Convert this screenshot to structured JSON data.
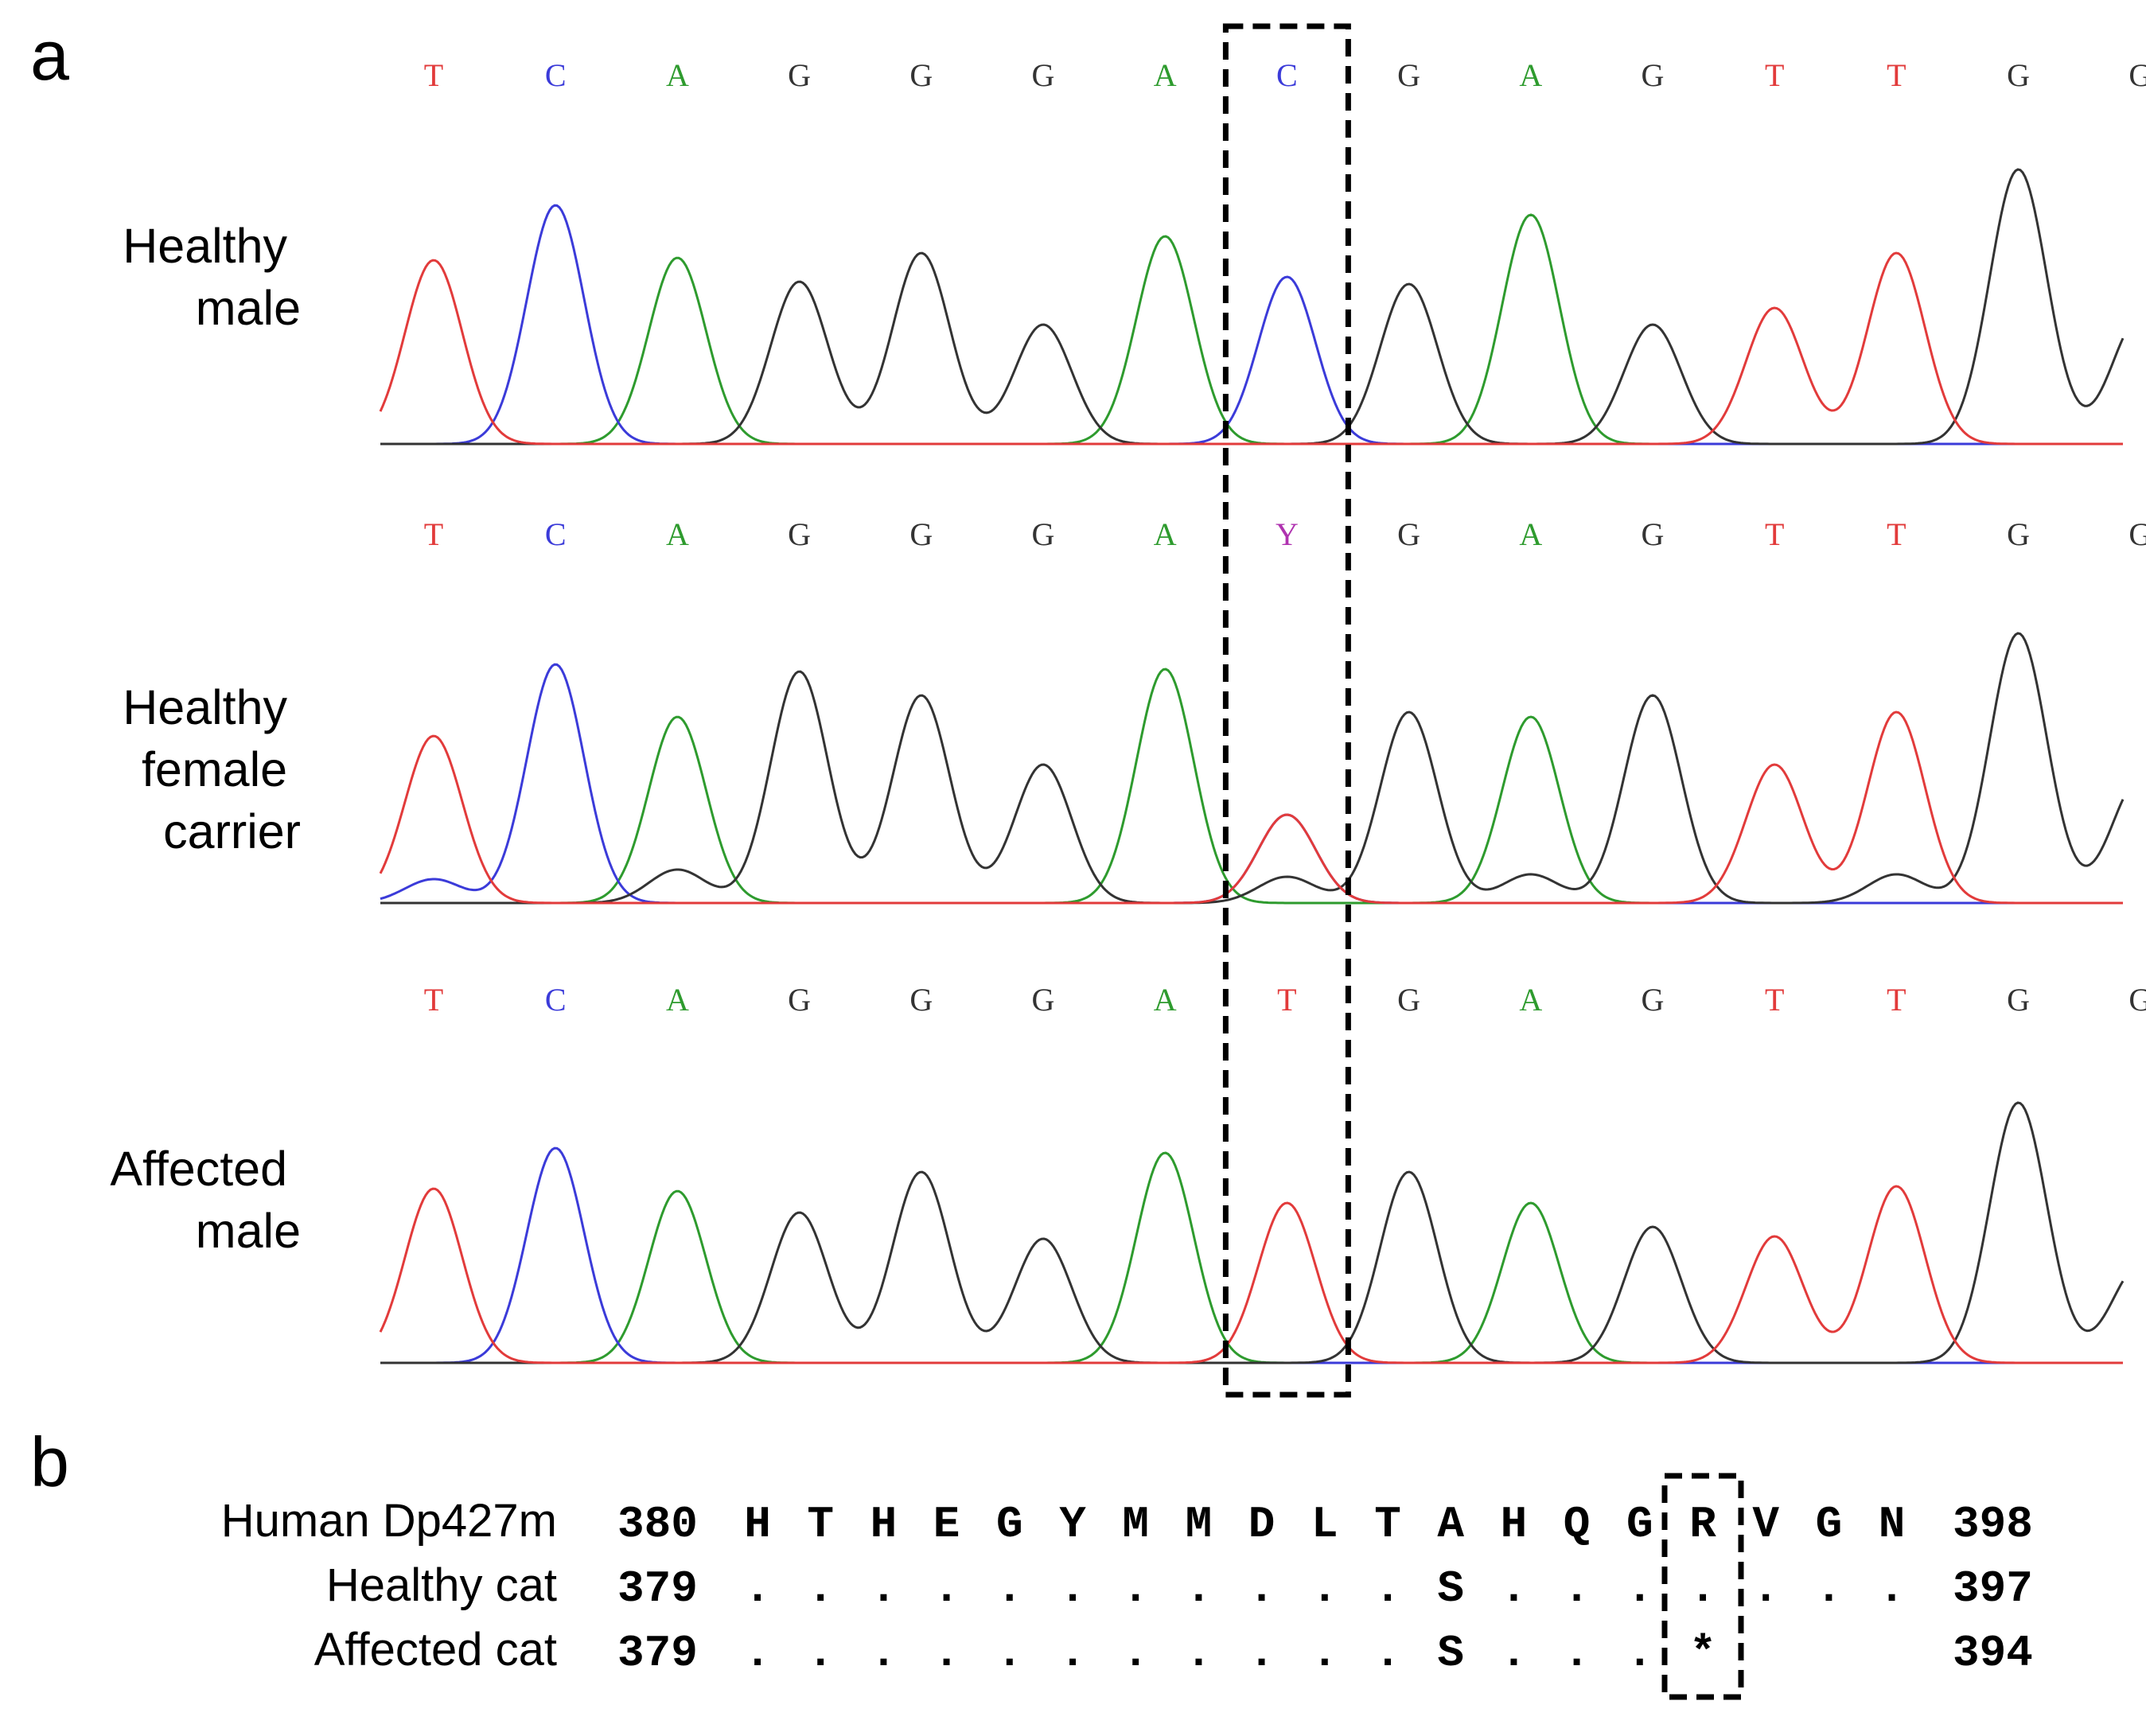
{
  "panels": {
    "a": {
      "letter": "a"
    },
    "b": {
      "letter": "b"
    }
  },
  "colors": {
    "A": "#2e9b2e",
    "C": "#3b3bd9",
    "G": "#333333",
    "T": "#e23b3b",
    "Y": "#b033b0"
  },
  "chromatograms": [
    {
      "label_lines": [
        "Healthy",
        "male"
      ],
      "bases": [
        "T",
        "C",
        "A",
        "G",
        "G",
        "G",
        "A",
        "C",
        "G",
        "A",
        "G",
        "T",
        "T",
        "G",
        "G"
      ],
      "peak_heights": [
        0.77,
        1.0,
        0.78,
        0.68,
        0.8,
        0.5,
        0.87,
        0.7,
        0.67,
        0.96,
        0.5,
        0.57,
        0.8,
        1.15,
        0.53
      ],
      "secondary_peaks": []
    },
    {
      "label_lines": [
        "Healthy",
        "female",
        "carrier"
      ],
      "bases": [
        "T",
        "C",
        "A",
        "G",
        "G",
        "G",
        "A",
        "Y",
        "G",
        "A",
        "G",
        "T",
        "T",
        "G",
        "G"
      ],
      "peak_heights": [
        0.7,
        1.0,
        0.78,
        0.97,
        0.87,
        0.58,
        0.98,
        0.37,
        0.8,
        0.78,
        0.87,
        0.58,
        0.8,
        1.13,
        0.52
      ],
      "secondary_peaks": [
        {
          "index": 0,
          "base": "C",
          "height": 0.1
        },
        {
          "index": 2,
          "base": "G",
          "height": 0.14
        },
        {
          "index": 7,
          "base": "C",
          "height": 0.37
        },
        {
          "index": 7,
          "base": "G",
          "height": 0.11
        },
        {
          "index": 9,
          "base": "G",
          "height": 0.12
        },
        {
          "index": 12,
          "base": "G",
          "height": 0.12
        }
      ]
    },
    {
      "label_lines": [
        "Affected",
        "male"
      ],
      "bases": [
        "T",
        "C",
        "A",
        "G",
        "G",
        "G",
        "A",
        "T",
        "G",
        "A",
        "G",
        "T",
        "T",
        "G",
        "G"
      ],
      "peak_heights": [
        0.73,
        0.9,
        0.72,
        0.63,
        0.8,
        0.52,
        0.88,
        0.67,
        0.8,
        0.67,
        0.57,
        0.53,
        0.74,
        1.09,
        0.41
      ],
      "secondary_peaks": []
    }
  ],
  "highlight": {
    "base_index": 7
  },
  "alignment": {
    "rows": [
      {
        "label": "Human Dp427m",
        "start": "380",
        "residues": [
          "H",
          "T",
          "H",
          "E",
          "G",
          "Y",
          "M",
          "M",
          "D",
          "L",
          "T",
          "A",
          "H",
          "Q",
          "G",
          "R",
          "V",
          "G",
          "N"
        ],
        "end": "398"
      },
      {
        "label": "Healthy cat",
        "start": "379",
        "residues": [
          ".",
          ".",
          ".",
          ".",
          ".",
          ".",
          ".",
          ".",
          ".",
          ".",
          ".",
          "S",
          ".",
          ".",
          ".",
          ".",
          ".",
          ".",
          "."
        ],
        "end": "397"
      },
      {
        "label": "Affected cat",
        "start": "379",
        "residues": [
          ".",
          ".",
          ".",
          ".",
          ".",
          ".",
          ".",
          ".",
          ".",
          ".",
          ".",
          "S",
          ".",
          ".",
          ".",
          "*",
          "",
          "",
          ""
        ],
        "end": "394"
      }
    ],
    "highlight_index": 15
  }
}
